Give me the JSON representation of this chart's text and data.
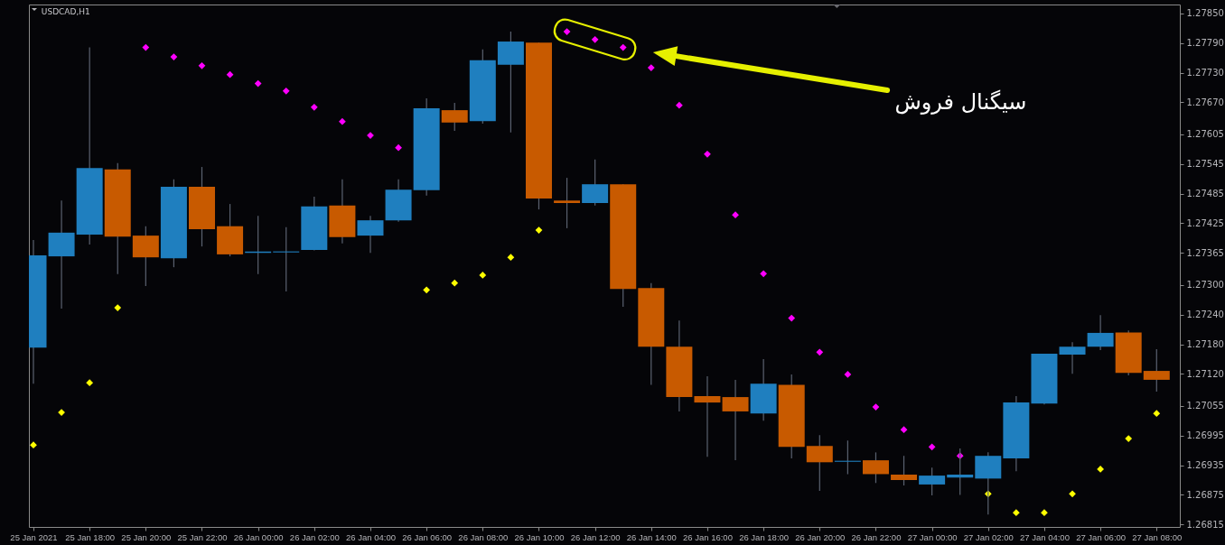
{
  "chart_data": {
    "type": "candlestick",
    "title": "USDCAD,H1",
    "x": [
      "2021-01-25T16:00",
      "2021-01-25T17:00",
      "2021-01-25T18:00",
      "2021-01-25T19:00",
      "2021-01-25T20:00",
      "2021-01-25T21:00",
      "2021-01-25T22:00",
      "2021-01-25T23:00",
      "2021-01-26T00:00",
      "2021-01-26T01:00",
      "2021-01-26T02:00",
      "2021-01-26T03:00",
      "2021-01-26T04:00",
      "2021-01-26T05:00",
      "2021-01-26T06:00",
      "2021-01-26T07:00",
      "2021-01-26T08:00",
      "2021-01-26T09:00",
      "2021-01-26T10:00",
      "2021-01-26T11:00",
      "2021-01-26T12:00",
      "2021-01-26T13:00",
      "2021-01-26T14:00",
      "2021-01-26T15:00",
      "2021-01-26T16:00",
      "2021-01-26T17:00",
      "2021-01-26T18:00",
      "2021-01-26T19:00",
      "2021-01-26T20:00",
      "2021-01-26T21:00",
      "2021-01-26T22:00",
      "2021-01-26T23:00",
      "2021-01-27T00:00",
      "2021-01-27T01:00",
      "2021-01-27T02:00",
      "2021-01-27T03:00",
      "2021-01-27T04:00",
      "2021-01-27T05:00",
      "2021-01-27T06:00",
      "2021-01-27T07:00",
      "2021-01-27T08:00"
    ],
    "ohlc": [
      [
        1.27173,
        1.27391,
        1.271,
        1.2736
      ],
      [
        1.27358,
        1.27471,
        1.27252,
        1.27406
      ],
      [
        1.27402,
        1.27781,
        1.27382,
        1.27537
      ],
      [
        1.27534,
        1.27547,
        1.27322,
        1.27398
      ],
      [
        1.274,
        1.27419,
        1.27298,
        1.27356
      ],
      [
        1.27354,
        1.27514,
        1.27336,
        1.27499
      ],
      [
        1.27499,
        1.27539,
        1.27378,
        1.27413
      ],
      [
        1.27419,
        1.27464,
        1.27358,
        1.27362
      ],
      [
        1.27365,
        1.2744,
        1.27322,
        1.27368
      ],
      [
        1.27366,
        1.27417,
        1.27287,
        1.27368
      ],
      [
        1.27371,
        1.27479,
        1.2737,
        1.27459
      ],
      [
        1.27461,
        1.27514,
        1.27384,
        1.27397
      ],
      [
        1.274,
        1.2744,
        1.27365,
        1.27431
      ],
      [
        1.27431,
        1.27514,
        1.27428,
        1.27493
      ],
      [
        1.27492,
        1.27678,
        1.27481,
        1.27658
      ],
      [
        1.27654,
        1.27669,
        1.27612,
        1.27629
      ],
      [
        1.27632,
        1.27777,
        1.27627,
        1.27755
      ],
      [
        1.27746,
        1.27813,
        1.27609,
        1.27793
      ],
      [
        1.27791,
        1.27791,
        1.27453,
        1.27475
      ],
      [
        1.27471,
        1.27517,
        1.27415,
        1.27466
      ],
      [
        1.27466,
        1.27554,
        1.27461,
        1.27504
      ],
      [
        1.27504,
        1.27504,
        1.27256,
        1.27292
      ],
      [
        1.27294,
        1.27304,
        1.27098,
        1.27175
      ],
      [
        1.27175,
        1.27228,
        1.27044,
        1.27073
      ],
      [
        1.27075,
        1.27115,
        1.26952,
        1.27062
      ],
      [
        1.27073,
        1.27108,
        1.26945,
        1.27044
      ],
      [
        1.2704,
        1.2715,
        1.27025,
        1.271
      ],
      [
        1.27098,
        1.27119,
        1.26949,
        1.26972
      ],
      [
        1.26974,
        1.26996,
        1.26883,
        1.26941
      ],
      [
        1.26942,
        1.26985,
        1.26917,
        1.26944
      ],
      [
        1.26945,
        1.26961,
        1.26899,
        1.26917
      ],
      [
        1.26916,
        1.26954,
        1.26894,
        1.26905
      ],
      [
        1.26896,
        1.2693,
        1.26874,
        1.26914
      ],
      [
        1.2691,
        1.26969,
        1.26875,
        1.26916
      ],
      [
        1.26908,
        1.26961,
        1.26835,
        1.26954
      ],
      [
        1.26949,
        1.27075,
        1.26923,
        1.27062
      ],
      [
        1.2706,
        1.27161,
        1.27058,
        1.27161
      ],
      [
        1.27159,
        1.27184,
        1.2712,
        1.27175
      ],
      [
        1.27175,
        1.27239,
        1.27168,
        1.27203
      ],
      [
        1.27204,
        1.27208,
        1.27117,
        1.27122
      ],
      [
        1.27126,
        1.2717,
        1.27084,
        1.27108
      ]
    ],
    "colors": [
      "#1f7fbf",
      "#1f7fbf",
      "#1f7fbf",
      "#c85a00",
      "#c85a00",
      "#1f7fbf",
      "#c85a00",
      "#c85a00",
      "#1f7fbf",
      "#1f7fbf",
      "#1f7fbf",
      "#c85a00",
      "#1f7fbf",
      "#1f7fbf",
      "#1f7fbf",
      "#c85a00",
      "#1f7fbf",
      "#1f7fbf",
      "#c85a00",
      "#c85a00",
      "#1f7fbf",
      "#c85a00",
      "#c85a00",
      "#c85a00",
      "#c85a00",
      "#c85a00",
      "#1f7fbf",
      "#c85a00",
      "#c85a00",
      "#1f7fbf",
      "#c85a00",
      "#c85a00",
      "#1f7fbf",
      "#1f7fbf",
      "#1f7fbf",
      "#1f7fbf",
      "#1f7fbf",
      "#1f7fbf",
      "#1f7fbf",
      "#c85a00",
      "#c85a00"
    ],
    "series": [
      {
        "type": "scatter",
        "color": "#ff00ff",
        "values": [
          null,
          null,
          null,
          null,
          1.27781,
          1.27762,
          1.27744,
          1.27726,
          1.27708,
          1.27693,
          1.2766,
          1.27631,
          1.27603,
          1.27578,
          null,
          null,
          null,
          null,
          null,
          1.27813,
          1.27797,
          1.27781,
          1.2774,
          1.27664,
          1.27565,
          1.27442,
          1.27323,
          1.27233,
          1.27164,
          1.27119,
          1.27053,
          1.27007,
          1.26972,
          1.26954,
          null,
          null,
          null,
          null,
          null,
          null,
          null
        ]
      },
      {
        "type": "scatter",
        "color": "#ffff00",
        "values": [
          1.26976,
          1.27042,
          1.27102,
          1.27254,
          null,
          null,
          null,
          null,
          null,
          null,
          null,
          null,
          null,
          null,
          1.2729,
          1.27304,
          1.2732,
          1.27356,
          1.27411,
          null,
          null,
          null,
          null,
          null,
          null,
          null,
          null,
          null,
          null,
          null,
          null,
          null,
          null,
          null,
          1.26877,
          1.26839,
          1.26839,
          1.26877,
          1.26927,
          1.26989,
          1.2704
        ]
      }
    ],
    "marker": "diamond",
    "xlim": [
      "2021-01-25T16:00",
      "2021-01-27T08:40"
    ],
    "xticks": [
      {
        "value": "2021-01-25T16:00",
        "label": "25 Jan 2021"
      },
      {
        "value": "2021-01-25T18:00",
        "label": "25 Jan 18:00"
      },
      {
        "value": "2021-01-25T20:00",
        "label": "25 Jan 20:00"
      },
      {
        "value": "2021-01-25T22:00",
        "label": "25 Jan 22:00"
      },
      {
        "value": "2021-01-26T00:00",
        "label": "26 Jan 00:00"
      },
      {
        "value": "2021-01-26T02:00",
        "label": "26 Jan 02:00"
      },
      {
        "value": "2021-01-26T04:00",
        "label": "26 Jan 04:00"
      },
      {
        "value": "2021-01-26T06:00",
        "label": "26 Jan 06:00"
      },
      {
        "value": "2021-01-26T08:00",
        "label": "26 Jan 08:00"
      },
      {
        "value": "2021-01-26T10:00",
        "label": "26 Jan 10:00"
      },
      {
        "value": "2021-01-26T12:00",
        "label": "26 Jan 12:00"
      },
      {
        "value": "2021-01-26T14:00",
        "label": "26 Jan 14:00"
      },
      {
        "value": "2021-01-26T16:00",
        "label": "26 Jan 16:00"
      },
      {
        "value": "2021-01-26T18:00",
        "label": "26 Jan 18:00"
      },
      {
        "value": "2021-01-26T20:00",
        "label": "26 Jan 20:00"
      },
      {
        "value": "2021-01-26T22:00",
        "label": "26 Jan 22:00"
      },
      {
        "value": "2021-01-27T00:00",
        "label": "27 Jan 00:00"
      },
      {
        "value": "2021-01-27T02:00",
        "label": "27 Jan 02:00"
      },
      {
        "value": "2021-01-27T04:00",
        "label": "27 Jan 04:00"
      },
      {
        "value": "2021-01-27T06:00",
        "label": "27 Jan 06:00"
      },
      {
        "value": "2021-01-27T08:00",
        "label": "27 Jan 08:00"
      }
    ],
    "ylim": [
      1.2681,
      1.27868
    ],
    "yticks": [
      {
        "value": 1.2785,
        "label": "1.27850"
      },
      {
        "value": 1.2779,
        "label": "1.27790"
      },
      {
        "value": 1.2773,
        "label": "1.27730"
      },
      {
        "value": 1.2767,
        "label": "1.27670"
      },
      1.27605,
      1.27545,
      1.27485,
      1.27425,
      1.27365,
      {
        "value": 1.273,
        "label": "1.27300"
      },
      {
        "value": 1.2724,
        "label": "1.27240"
      },
      {
        "value": 1.2718,
        "label": "1.27180"
      },
      {
        "value": 1.2712,
        "label": "1.27120"
      },
      1.27055,
      1.26995,
      1.26935,
      1.26875,
      1.26815
    ],
    "annotations": [
      "سیگنال فروش"
    ]
  }
}
